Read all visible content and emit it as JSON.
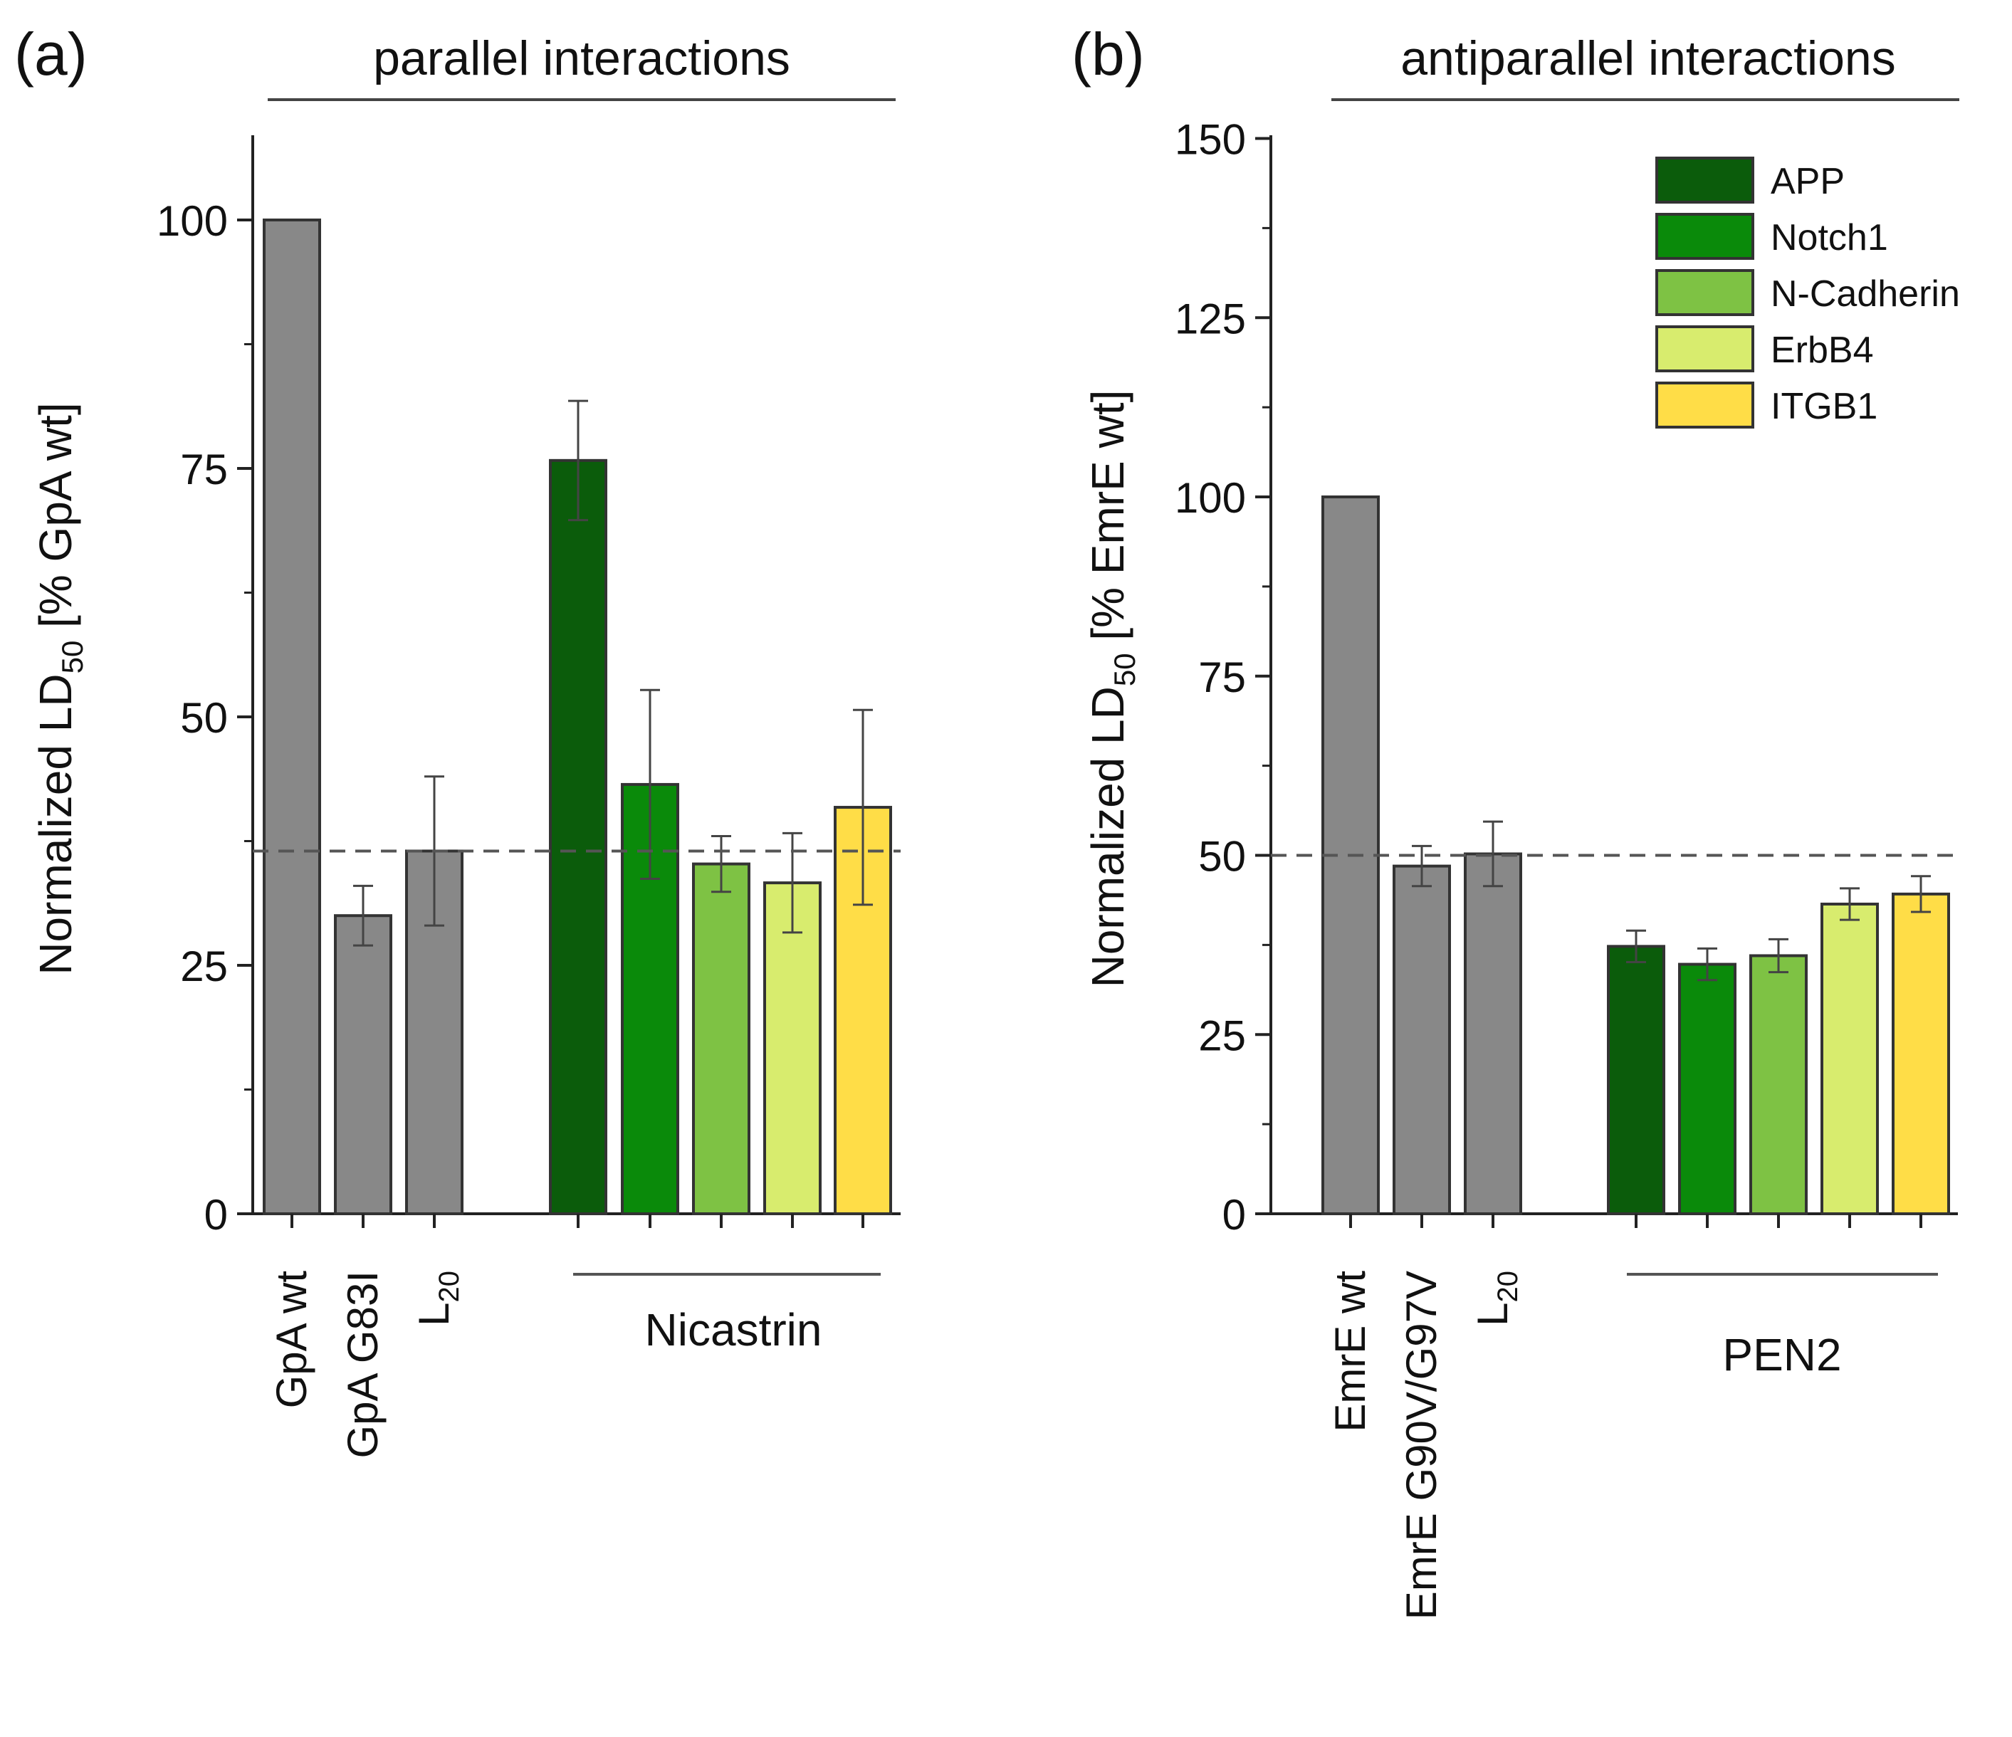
{
  "chart_data": [
    {
      "type": "bar",
      "panel_label": "(a)",
      "title": "parallel interactions",
      "ylabel": {
        "main": "Normalized LD",
        "sub": "50",
        "tail": " [% GpA wt]"
      },
      "ylim": [
        0,
        110
      ],
      "yticks": [
        0,
        25,
        50,
        75,
        100
      ],
      "reference_line": 36.5,
      "bars": [
        {
          "label": "GpA wt",
          "value": 100,
          "err": null,
          "color": "#888888"
        },
        {
          "label": "GpA G83I",
          "value": 30,
          "err": 3,
          "color": "#888888"
        },
        {
          "label": "L",
          "label_sub": "20",
          "value": 36.5,
          "err": 7.5,
          "color": "#888888"
        },
        {
          "label": "APP",
          "value": 75.8,
          "err": 6,
          "color": "#0b5c0b"
        },
        {
          "label": "Notch1",
          "value": 43.2,
          "err": 9.5,
          "color": "#0a8a0a"
        },
        {
          "label": "N-Cadherin",
          "value": 35.2,
          "err": 2.8,
          "color": "#7ec244"
        },
        {
          "label": "ErbB4",
          "value": 33.3,
          "err": 5,
          "color": "#d8ec6e"
        },
        {
          "label": "ITGB1",
          "value": 40.9,
          "err": 9.8,
          "color": "#ffdd47"
        }
      ],
      "group_label": "Nicastrin"
    },
    {
      "type": "bar",
      "panel_label": "(b)",
      "title": "antiparallel interactions",
      "ylabel": {
        "main": "Normalized LD",
        "sub": "50",
        "tail": " [% EmrE wt]"
      },
      "ylim": [
        0,
        150
      ],
      "yticks": [
        0,
        25,
        50,
        75,
        100,
        125,
        150
      ],
      "reference_line": 50,
      "bars": [
        {
          "label": "EmrE wt",
          "value": 100,
          "err": null,
          "color": "#888888"
        },
        {
          "label": "EmrE G90V/G97V",
          "value": 48.5,
          "err": 2.8,
          "color": "#888888"
        },
        {
          "label": "L",
          "label_sub": "20",
          "value": 50.2,
          "err": 4.5,
          "color": "#888888"
        },
        {
          "label": "APP",
          "value": 37.3,
          "err": 2.2,
          "color": "#0b5c0b"
        },
        {
          "label": "Notch1",
          "value": 34.8,
          "err": 2.2,
          "color": "#0a8a0a"
        },
        {
          "label": "N-Cadherin",
          "value": 36,
          "err": 2.3,
          "color": "#7ec244"
        },
        {
          "label": "ErbB4",
          "value": 43.2,
          "err": 2.2,
          "color": "#d8ec6e"
        },
        {
          "label": "ITGB1",
          "value": 44.6,
          "err": 2.5,
          "color": "#ffdd47"
        }
      ],
      "group_label": "PEN2",
      "legend": [
        {
          "label": "APP",
          "color": "#0b5c0b"
        },
        {
          "label": "Notch1",
          "color": "#0a8a0a"
        },
        {
          "label": "N-Cadherin",
          "color": "#7ec244"
        },
        {
          "label": "ErbB4",
          "color": "#d8ec6e"
        },
        {
          "label": "ITGB1",
          "color": "#ffdd47"
        }
      ]
    }
  ]
}
